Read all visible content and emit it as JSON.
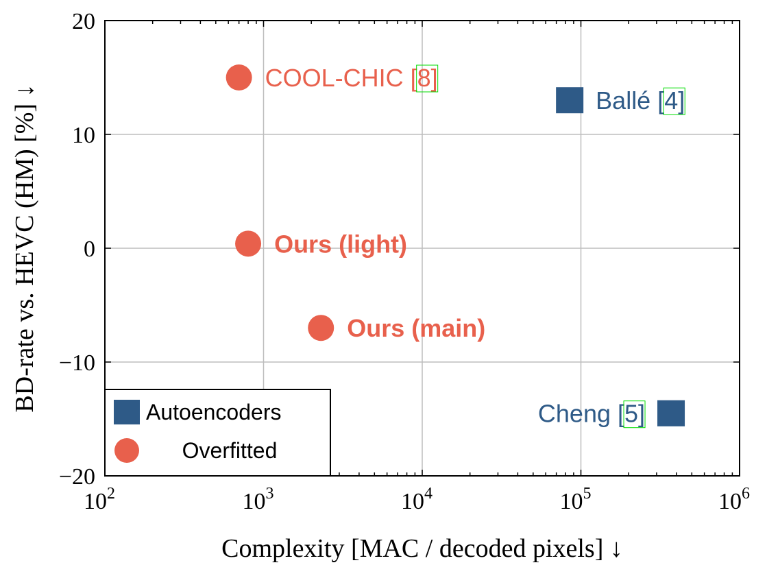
{
  "chart_data": {
    "type": "scatter",
    "xlabel": "Complexity [MAC / decoded pixels] ↓",
    "ylabel": "BD-rate vs. HEVC (HM) [%] ↓",
    "x_scale": "log",
    "xlim": [
      100,
      1000000
    ],
    "ylim": [
      -20,
      20
    ],
    "x_ticks": [
      100,
      1000,
      10000,
      100000,
      1000000
    ],
    "x_tick_labels": [
      {
        "base": "10",
        "exp": "2"
      },
      {
        "base": "10",
        "exp": "3"
      },
      {
        "base": "10",
        "exp": "4"
      },
      {
        "base": "10",
        "exp": "5"
      },
      {
        "base": "10",
        "exp": "6"
      }
    ],
    "y_ticks": [
      20,
      10,
      0,
      -10,
      -20
    ],
    "y_tick_labels": [
      "20",
      "10",
      "0",
      "−10",
      "−20"
    ],
    "grid": true,
    "legend_position": "bottom-left",
    "series": [
      {
        "name": "Autoencoders",
        "marker": "square",
        "color": "#2e5a87",
        "points": [
          {
            "x": 85000,
            "y": 13,
            "label": "Ballé",
            "cite": "4",
            "label_side": "right",
            "bold": false
          },
          {
            "x": 370000,
            "y": -14.5,
            "label": "Cheng",
            "cite": "5",
            "label_side": "left",
            "bold": false
          }
        ]
      },
      {
        "name": "Overfitted",
        "marker": "circle",
        "color": "#e8604c",
        "points": [
          {
            "x": 700,
            "y": 15,
            "label": "COOL-CHIC",
            "cite": "8",
            "label_side": "right",
            "bold": false
          },
          {
            "x": 800,
            "y": 0.4,
            "label": "Ours (light)",
            "cite": "",
            "label_side": "right",
            "bold": true
          },
          {
            "x": 2300,
            "y": -7,
            "label": "Ours (main)",
            "cite": "",
            "label_side": "right",
            "bold": true
          }
        ]
      }
    ]
  }
}
